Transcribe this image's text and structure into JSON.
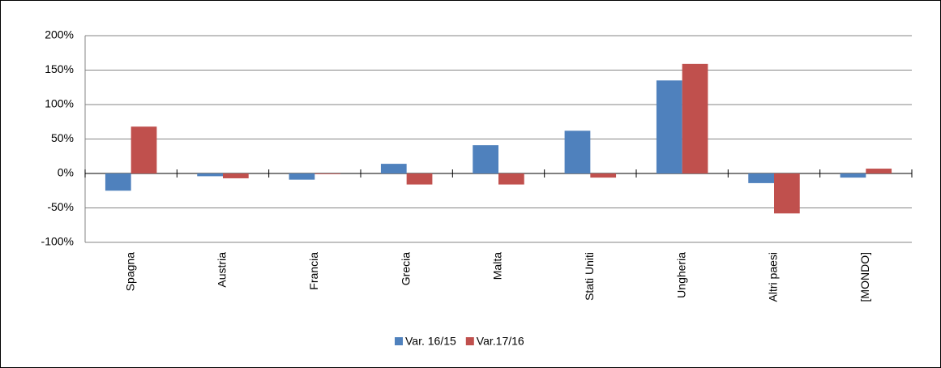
{
  "chart_data": {
    "type": "bar",
    "categories": [
      "Spagna",
      "Austria",
      "Francia",
      "Grecia",
      "Malta",
      "Stati Uniti",
      "Ungheria",
      "Altri paesi",
      "[MONDO]"
    ],
    "series": [
      {
        "name": "Var. 16/15",
        "color": "#4f81bd",
        "values": [
          -25,
          -4,
          -9,
          14,
          41,
          62,
          135,
          -14,
          -6
        ]
      },
      {
        "name": "Var.17/16",
        "color": "#c0504d",
        "values": [
          68,
          -7,
          -1,
          -16,
          -16,
          -6,
          159,
          -58,
          7
        ]
      }
    ],
    "ylim": [
      -100,
      200
    ],
    "yticks": [
      {
        "value": -100,
        "label": "-100%"
      },
      {
        "value": -50,
        "label": "-50%"
      },
      {
        "value": 0,
        "label": "0%"
      },
      {
        "value": 50,
        "label": "50%"
      },
      {
        "value": 100,
        "label": "100%"
      },
      {
        "value": 150,
        "label": "150%"
      },
      {
        "value": 200,
        "label": "200%"
      }
    ],
    "grid": true,
    "legend": "bottom"
  }
}
